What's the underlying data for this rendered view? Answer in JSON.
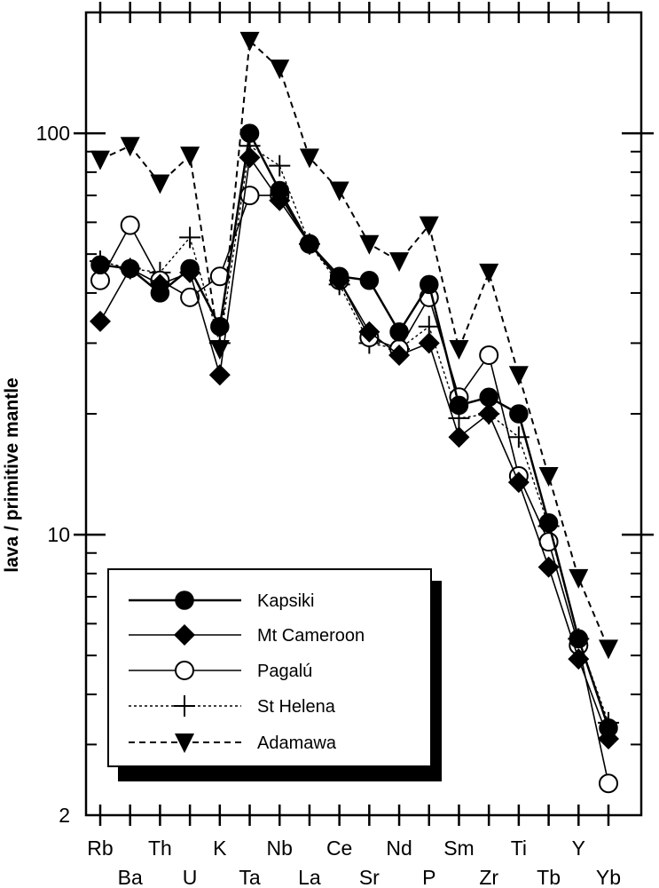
{
  "chart_data": {
    "type": "line",
    "ylabel": "lava / primitive mantle",
    "yscale": "log",
    "ylim": [
      2,
      200
    ],
    "y_tick_labels": [
      "2",
      "10",
      "100"
    ],
    "categories": [
      "Rb",
      "Ba",
      "Th",
      "U",
      "K",
      "Ta",
      "Nb",
      "La",
      "Ce",
      "Sr",
      "Nd",
      "P",
      "Sm",
      "Zr",
      "Ti",
      "Tb",
      "Y",
      "Yb"
    ],
    "series": [
      {
        "name": "Kapsiki",
        "marker": "filled-circle",
        "line": "solid-bold",
        "values": [
          47,
          46,
          40,
          46,
          33,
          100,
          72,
          53,
          44,
          43,
          32,
          42,
          21,
          22,
          20,
          10.7,
          5.5,
          3.3
        ]
      },
      {
        "name": "Mt Cameroon",
        "marker": "filled-diamond",
        "line": "solid",
        "values": [
          34,
          46,
          42,
          45,
          25,
          87,
          68,
          53,
          43,
          32,
          28,
          30,
          17.5,
          20,
          13.5,
          8.3,
          4.9,
          3.1
        ]
      },
      {
        "name": "Pagalú",
        "marker": "open-circle",
        "line": "solid",
        "values": [
          43,
          59,
          43,
          39,
          44,
          70,
          70,
          53,
          43,
          31,
          29,
          39,
          22,
          28,
          14,
          9.6,
          5.3,
          2.4
        ]
      },
      {
        "name": "St Helena",
        "marker": "plus",
        "line": "dotted",
        "values": [
          48,
          46,
          45,
          55,
          30,
          93,
          83,
          53,
          42,
          30,
          29,
          33,
          19.5,
          20,
          17.5,
          10.5,
          5.5,
          3.4
        ]
      },
      {
        "name": "Adamawa",
        "marker": "filled-triangle-down",
        "line": "dashed",
        "values": [
          86,
          93,
          75,
          88,
          29,
          170,
          145,
          87,
          72,
          53,
          48,
          59,
          29,
          45,
          25,
          14,
          7.8,
          5.2
        ]
      }
    ],
    "legend": "lower-left",
    "grid": false
  }
}
